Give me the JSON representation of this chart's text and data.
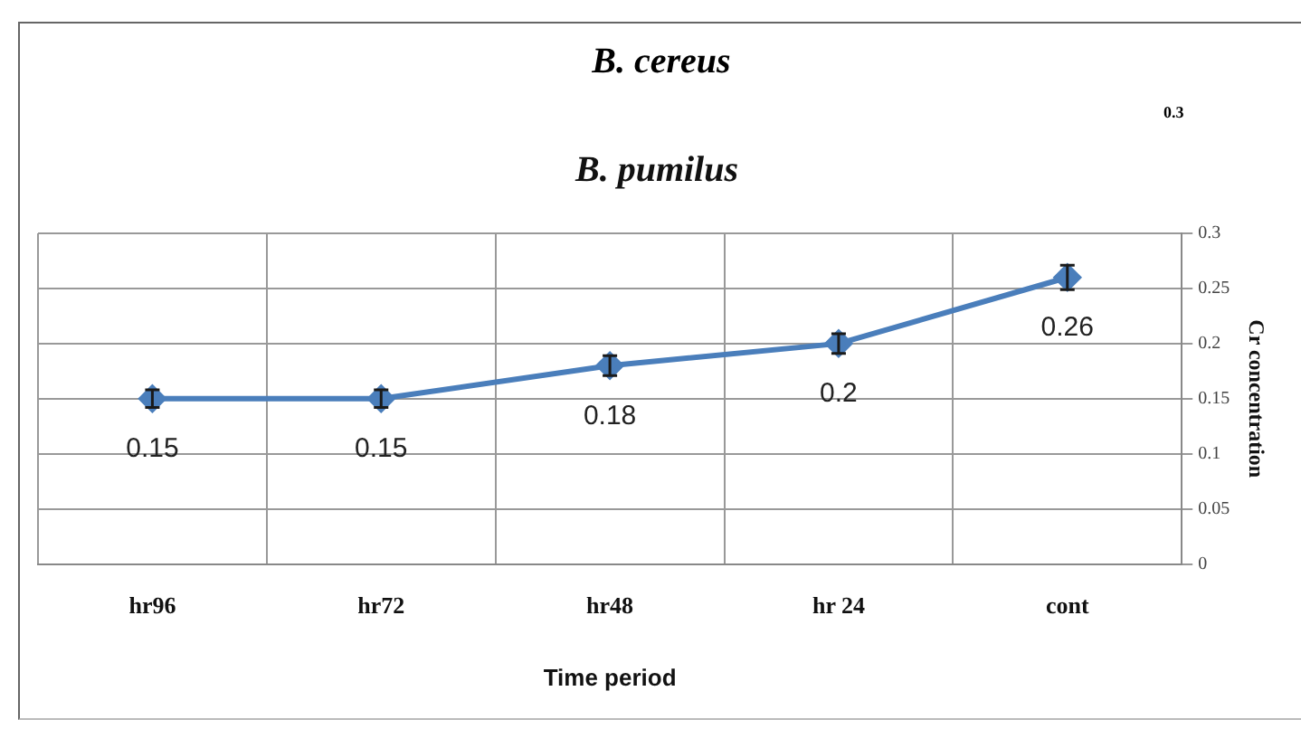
{
  "chart_data": [
    {
      "type": "other",
      "title": "B. cereus",
      "annotations": [
        "0.3"
      ]
    },
    {
      "type": "line",
      "title": "B. pumilus",
      "xlabel": "Time period",
      "ylabel": "Cr concentration",
      "categories": [
        "hr96",
        "hr72",
        "hr48",
        "hr 24",
        "cont"
      ],
      "series": [
        {
          "color": "#4a7ebb",
          "values": [
            0.15,
            0.15,
            0.18,
            0.2,
            0.26
          ],
          "errors": [
            0.008,
            0.008,
            0.009,
            0.009,
            0.011
          ]
        }
      ],
      "ylim": [
        0,
        0.3
      ],
      "yticks": [
        0,
        0.05,
        0.1,
        0.15,
        0.2,
        0.25,
        0.3
      ],
      "grid": true,
      "legend": false,
      "marker": "diamond",
      "line_style": "solid",
      "data_labels": true
    }
  ]
}
